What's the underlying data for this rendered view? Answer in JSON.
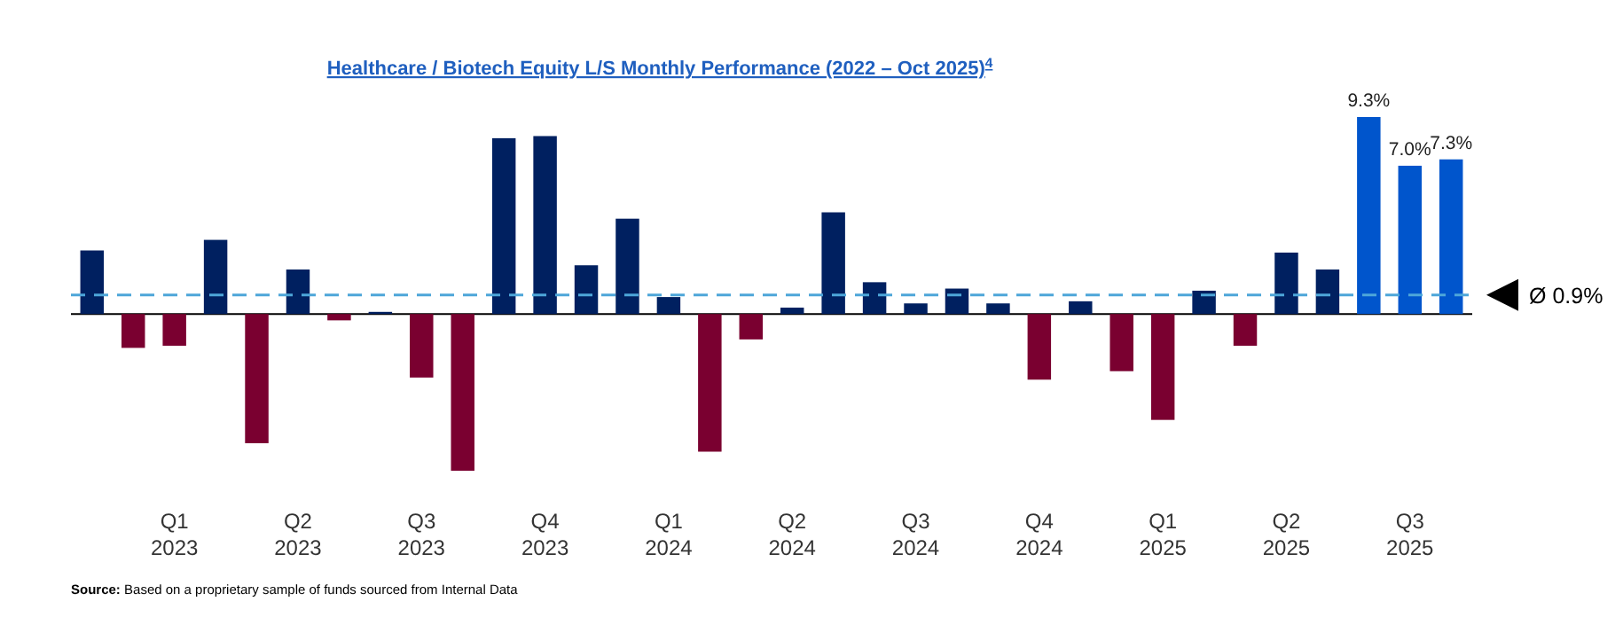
{
  "chart_data": {
    "type": "bar",
    "title": "Healthcare / Biotech Equity L/S Monthly Performance (2022 – Oct 2025)$^{4}$",
    "categories": [
      null,
      null,
      "Q1\n2023",
      null,
      null,
      "Q2\n2023",
      null,
      null,
      "Q3\n2023",
      null,
      null,
      "Q4\n2023",
      null,
      null,
      "Q1\n2024",
      null,
      null,
      "Q2\n2024",
      null,
      null,
      "Q3\n2024",
      null,
      null,
      "Q4\n2024",
      null,
      null,
      "Q1\n2025",
      null,
      null,
      "Q2\n2025",
      null,
      null,
      "Q3\n2025",
      null
    ],
    "values": [
      3.0,
      -1.6,
      -1.5,
      3.5,
      -6.1,
      2.1,
      -0.3,
      0.1,
      -3.0,
      -7.4,
      8.3,
      8.4,
      2.3,
      4.5,
      0.8,
      -6.5,
      -1.2,
      0.3,
      4.8,
      1.5,
      0.5,
      1.2,
      0.5,
      -3.1,
      0.6,
      -2.7,
      -5.0,
      1.1,
      -1.5,
      2.9,
      2.1,
      9.3,
      7.0,
      7.3
    ],
    "colors": [
      "#002060",
      "#7a0030",
      "#7a0030",
      "#002060",
      "#7a0030",
      "#002060",
      "#7a0030",
      "#002060",
      "#7a0030",
      "#7a0030",
      "#002060",
      "#002060",
      "#002060",
      "#002060",
      "#002060",
      "#7a0030",
      "#7a0030",
      "#002060",
      "#002060",
      "#002060",
      "#002060",
      "#002060",
      "#002060",
      "#7a0030",
      "#002060",
      "#7a0030",
      "#7a0030",
      "#002060",
      "#7a0030",
      "#002060",
      "#002060",
      "#0055cc",
      "#0055cc",
      "#0055cc"
    ],
    "value_labels": [
      null,
      null,
      null,
      null,
      null,
      null,
      null,
      null,
      null,
      null,
      null,
      null,
      null,
      null,
      null,
      null,
      null,
      null,
      null,
      null,
      null,
      null,
      null,
      null,
      null,
      null,
      null,
      null,
      null,
      null,
      null,
      "9.3%",
      "7.0%",
      "7.3%"
    ],
    "ref_lines": [
      {
        "axis": "y",
        "value": 0.9,
        "label": "Ø 0.9%",
        "color": "#4da6d9",
        "line_style": "dashed"
      }
    ],
    "annotations": [
      "**Source:** Based on a proprietary sample of funds sourced from Internal Data"
    ],
    "tick_labels": "x"
  }
}
